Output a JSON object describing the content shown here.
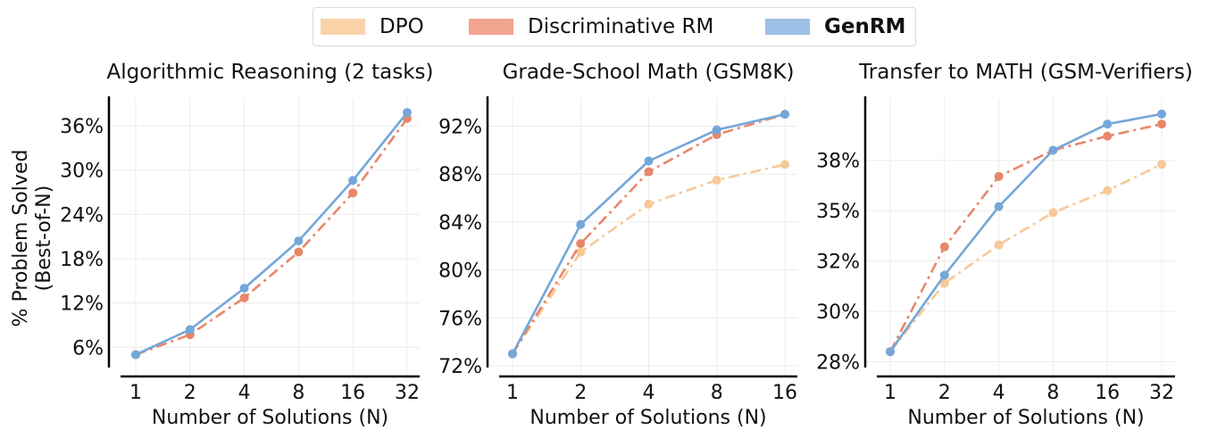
{
  "legend": [
    {
      "name": "DPO",
      "color": "#f9d2a8",
      "bold": false
    },
    {
      "name": "Discriminative RM",
      "color": "#f2a58e",
      "bold": false
    },
    {
      "name": "GenRM",
      "color": "#9dc0e6",
      "bold": true
    }
  ],
  "chart_data": [
    {
      "type": "line",
      "title": "Algorithmic Reasoning (2 tasks)",
      "xlabel": "Number of Solutions (N)",
      "ylabel": "% Problem Solved (Best-of-N)",
      "x": [
        "1",
        "2",
        "4",
        "8",
        "16",
        "32"
      ],
      "yticks": [
        6,
        12,
        18,
        24,
        30,
        36
      ],
      "ytick_labels": [
        "6%",
        "12%",
        "18%",
        "24%",
        "30%",
        "36%"
      ],
      "ylim": [
        3.5,
        39.5
      ],
      "grid": true,
      "series": [
        {
          "name": "Discriminative RM",
          "color": "#e8876a",
          "dash": "dashdot",
          "values": [
            5.0,
            7.7,
            12.7,
            18.9,
            26.9,
            37.0
          ]
        },
        {
          "name": "GenRM",
          "color": "#74a7d9",
          "dash": "solid",
          "values": [
            5.0,
            8.4,
            14.0,
            20.4,
            28.6,
            37.8
          ]
        }
      ]
    },
    {
      "type": "line",
      "title": "Grade-School Math (GSM8K)",
      "xlabel": "Number of Solutions (N)",
      "ylabel": "",
      "x": [
        "1",
        "2",
        "4",
        "8",
        "16"
      ],
      "yticks": [
        72,
        76,
        80,
        84,
        88,
        92
      ],
      "ytick_labels": [
        "72%",
        "76%",
        "80%",
        "84%",
        "88%",
        "92%"
      ],
      "ylim": [
        72,
        94.2
      ],
      "grid": true,
      "series": [
        {
          "name": "DPO",
          "color": "#f7c898",
          "dash": "dashdot",
          "values": [
            73.0,
            81.5,
            85.5,
            87.5,
            88.8
          ]
        },
        {
          "name": "Discriminative RM",
          "color": "#e8876a",
          "dash": "dashdot",
          "values": [
            73.0,
            82.2,
            88.2,
            91.3,
            93.0
          ]
        },
        {
          "name": "GenRM",
          "color": "#74a7d9",
          "dash": "solid",
          "values": [
            73.0,
            83.8,
            89.1,
            91.7,
            93.0
          ]
        }
      ]
    },
    {
      "type": "line",
      "title": "Transfer to MATH (GSM-Verifiers)",
      "xlabel": "Number of Solutions (N)",
      "ylabel": "",
      "x": [
        "1",
        "2",
        "4",
        "8",
        "16",
        "32"
      ],
      "yticks": [
        27.5,
        30,
        32.5,
        35,
        37.5
      ],
      "ytick_labels": [
        "28%",
        "30%",
        "32%",
        "35%",
        "38%"
      ],
      "ylim": [
        27.3,
        40.5
      ],
      "grid": true,
      "series": [
        {
          "name": "DPO",
          "color": "#f7c898",
          "dash": "dashdot",
          "values": [
            28.0,
            31.4,
            33.3,
            34.9,
            36.0,
            37.3
          ]
        },
        {
          "name": "Discriminative RM",
          "color": "#e8876a",
          "dash": "dashdot",
          "values": [
            28.0,
            33.2,
            36.7,
            38.0,
            38.7,
            39.3
          ]
        },
        {
          "name": "GenRM",
          "color": "#74a7d9",
          "dash": "solid",
          "values": [
            28.0,
            31.8,
            35.2,
            38.0,
            39.3,
            39.8
          ]
        }
      ]
    }
  ]
}
